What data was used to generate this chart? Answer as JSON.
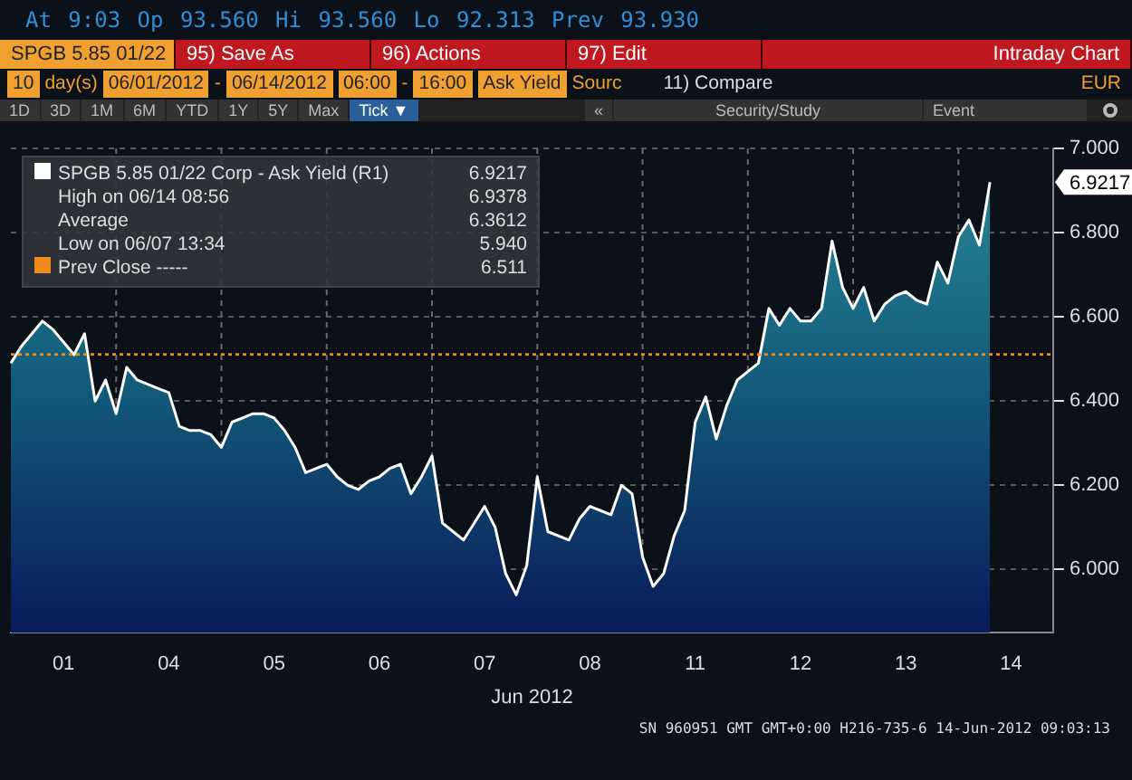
{
  "chart_data": {
    "type": "area",
    "title": "Intraday Chart",
    "subtitle": "At  9:03 Op 93.560  Hi 93.560  Lo 92.313  Prev 93.930",
    "xlabel": "Jun 2012",
    "categories": [
      null,
      null,
      null,
      null,
      null,
      "01",
      null,
      null,
      null,
      null,
      null,
      null,
      null,
      null,
      null,
      "04",
      null,
      null,
      null,
      null,
      null,
      null,
      null,
      null,
      null,
      "05",
      null,
      null,
      null,
      null,
      null,
      null,
      null,
      null,
      null,
      "06",
      null,
      null,
      null,
      null,
      null,
      null,
      null,
      null,
      null,
      "07",
      null,
      null,
      null,
      null,
      null,
      null,
      null,
      null,
      null,
      "08",
      null,
      null,
      null,
      null,
      null,
      null,
      null,
      null,
      null,
      "11",
      null,
      null,
      null,
      null,
      null,
      null,
      null,
      null,
      null,
      "12",
      null,
      null,
      null,
      null,
      null,
      null,
      null,
      null,
      null,
      "13",
      null,
      null,
      null,
      null,
      null,
      null,
      null,
      null,
      null,
      "14",
      null,
      null,
      null,
      null
    ],
    "series": [
      {
        "name": "SPGB 5.85 01/22 Corp - Ask Yield (R1)",
        "color": "#ffffff",
        "values": [
          6.49,
          6.53,
          6.56,
          6.59,
          6.57,
          6.54,
          6.51,
          6.56,
          6.4,
          6.45,
          6.37,
          6.48,
          6.45,
          6.44,
          6.43,
          6.42,
          6.34,
          6.33,
          6.33,
          6.32,
          6.29,
          6.35,
          6.36,
          6.37,
          6.37,
          6.36,
          6.33,
          6.29,
          6.23,
          6.24,
          6.25,
          6.22,
          6.2,
          6.19,
          6.21,
          6.22,
          6.24,
          6.25,
          6.18,
          6.22,
          6.27,
          6.11,
          6.09,
          6.07,
          6.11,
          6.15,
          6.1,
          5.99,
          5.94,
          6.01,
          6.22,
          6.09,
          6.08,
          6.07,
          6.12,
          6.15,
          6.14,
          6.13,
          6.2,
          6.18,
          6.03,
          5.96,
          5.99,
          6.08,
          6.14,
          6.35,
          6.41,
          6.31,
          6.39,
          6.45,
          6.47,
          6.49,
          6.62,
          6.58,
          6.62,
          6.59,
          6.59,
          6.62,
          6.78,
          6.67,
          6.62,
          6.67,
          6.59,
          6.63,
          6.65,
          6.66,
          6.64,
          6.63,
          6.73,
          6.68,
          6.79,
          6.83,
          6.77,
          6.92,
          null,
          null,
          null,
          null,
          null,
          null
        ]
      }
    ],
    "ylim": [
      5.85,
      7.0
    ],
    "yticks": [
      {
        "value": 6,
        "label": "6.000"
      },
      {
        "value": 6.2,
        "label": "6.200"
      },
      {
        "value": 6.4,
        "label": "6.400"
      },
      {
        "value": 6.6,
        "label": "6.600"
      },
      {
        "value": 6.8,
        "label": "6.800"
      },
      {
        "value": 7,
        "label": "7.000"
      }
    ],
    "grid": true,
    "legend": "top left",
    "ref_lines": [
      {
        "axis": "y",
        "value": 6.511,
        "label": "Prev Close -----",
        "color": "#f08a1c",
        "line_style": "dotted"
      }
    ],
    "annotations": [
      "6.9217",
      "High on 06/14 08:56",
      "6.9378",
      "Average",
      "6.3612",
      "Low on 06/07 13:34",
      "5.940",
      "6.511",
      "SPGB 5.85 01/22",
      "95) Save As",
      "96) Actions",
      "97) Edit",
      "10",
      "day(s)",
      "06/01/2012",
      "-",
      "06/14/2012",
      "06:00",
      "-",
      "16:00",
      "Ask Yield",
      "Sourc",
      "11) Compare",
      "EUR",
      "1D",
      "3D",
      "1M",
      "6M",
      "YTD",
      "1Y",
      "5Y",
      "Max",
      "Tick ▼",
      "«",
      "Security/Study",
      "Event",
      "SN 960951 GMT  GMT+0:00 H216-735-6 14-Jun-2012 09:03:13"
    ]
  }
}
